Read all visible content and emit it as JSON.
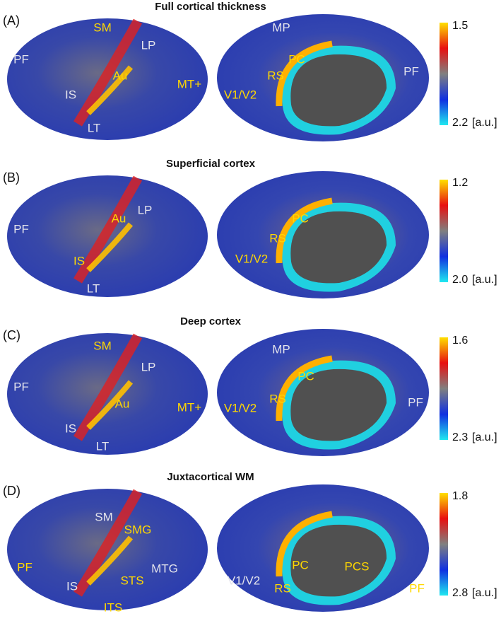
{
  "panels": [
    {
      "letter": "(A)",
      "title": "Full cortical thickness",
      "colorbar": {
        "top": "1.5",
        "bottom": "2.2",
        "unit": "[a.u.]"
      },
      "lateral_labels": [
        "SM",
        "PF",
        "LP",
        "Au",
        "MT+",
        "IS",
        "LT"
      ],
      "medial_labels": [
        "MP",
        "PC",
        "RS",
        "V1/V2",
        "PF"
      ]
    },
    {
      "letter": "(B)",
      "title": "Superficial cortex",
      "colorbar": {
        "top": "1.2",
        "bottom": "2.0",
        "unit": "[a.u.]"
      },
      "lateral_labels": [
        "PF",
        "LP",
        "Au",
        "IS",
        "LT"
      ],
      "medial_labels": [
        "PC",
        "RS",
        "V1/V2"
      ]
    },
    {
      "letter": "(C)",
      "title": "Deep cortex",
      "colorbar": {
        "top": "1.6",
        "bottom": "2.3",
        "unit": "[a.u.]"
      },
      "lateral_labels": [
        "SM",
        "PF",
        "LP",
        "Au",
        "MT+",
        "IS",
        "LT"
      ],
      "medial_labels": [
        "MP",
        "PC",
        "RS",
        "V1/V2",
        "PF"
      ]
    },
    {
      "letter": "(D)",
      "title": "Juxtacortical WM",
      "colorbar": {
        "top": "1.8",
        "bottom": "2.8",
        "unit": "[a.u.]"
      },
      "lateral_labels": [
        "SM",
        "SMG",
        "PF",
        "IS",
        "STS",
        "MTG",
        "ITS"
      ],
      "medial_labels": [
        "PC",
        "PCS",
        "RS",
        "V1/V2",
        "PF"
      ]
    }
  ]
}
